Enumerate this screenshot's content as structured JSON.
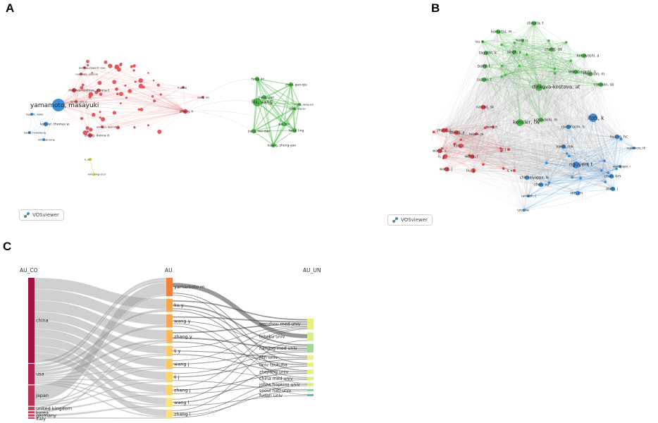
{
  "panels": {
    "a": {
      "letter": "A",
      "badge": "VOSviewer",
      "nodes": [
        {
          "label": "yamamoto, masayuki",
          "cluster": "blue",
          "size": "xl"
        },
        {
          "label": "kensler, thomas w.",
          "cluster": "blue",
          "size": "s"
        },
        {
          "label": "kwak, minkyoung",
          "cluster": "blue",
          "size": "xs"
        },
        {
          "label": "kim, jae-sung",
          "cluster": "blue",
          "size": "xs"
        },
        {
          "label": "taguchi, keiko",
          "cluster": "blue",
          "size": "xs"
        },
        {
          "label": "liu, yang",
          "cluster": "green",
          "size": "l"
        },
        {
          "label": "fang, jin",
          "cluster": "green",
          "size": "s"
        },
        {
          "label": "zhou, guo-qiu",
          "cluster": "green",
          "size": "s"
        },
        {
          "label": "jiang, yan",
          "cluster": "green",
          "size": "s"
        },
        {
          "label": "wang, jing-an",
          "cluster": "green",
          "size": "xs"
        },
        {
          "label": "zhang, jiang-jun",
          "cluster": "green",
          "size": "xs"
        },
        {
          "label": "jiang, mo-dan",
          "cluster": "green",
          "size": "s"
        },
        {
          "label": "wu, bin",
          "cluster": "green",
          "size": "s"
        },
        {
          "label": "tang, ling",
          "cluster": "green",
          "size": "s"
        },
        {
          "label": "kuang, zheng-yao",
          "cluster": "green",
          "size": "s"
        },
        {
          "label": "zhang, li",
          "cluster": "red",
          "size": "s"
        },
        {
          "label": "wang, lan",
          "cluster": "red",
          "size": "xs"
        },
        {
          "label": "li, gang",
          "cluster": "red",
          "size": "xs"
        },
        {
          "label": "dinkova-kostova, albena t.",
          "cluster": "red",
          "size": "s"
        },
        {
          "label": "hayes, john d.",
          "cluster": "red",
          "size": "xs"
        },
        {
          "label": "zhang, donna d.",
          "cluster": "red",
          "size": "s"
        },
        {
          "label": "johnson, delinda a.",
          "cluster": "red",
          "size": "xs"
        },
        {
          "label": "cuadrado, antonio",
          "cluster": "red",
          "size": "xs"
        },
        {
          "label": "jaeksya-clawent, jose",
          "cluster": "red",
          "size": "xs"
        },
        {
          "label": "kim, ying-chul",
          "cluster": "yellow",
          "size": "xs"
        },
        {
          "label": "li, jun",
          "cluster": "yellow",
          "size": "xs"
        }
      ]
    },
    "b": {
      "letter": "B",
      "badge": "VOSviewer",
      "nodes": [
        {
          "label": "itoh, k",
          "cluster": "blue",
          "size": "l"
        },
        {
          "label": "nguyen, t",
          "cluster": "blue",
          "size": "m"
        },
        {
          "label": "motohashi, h",
          "cluster": "blue",
          "size": "s"
        },
        {
          "label": "kwak, mk",
          "cluster": "blue",
          "size": "s"
        },
        {
          "label": "huang, hc",
          "cluster": "blue",
          "size": "s"
        },
        {
          "label": "cushmore, th",
          "cluster": "blue",
          "size": "xs"
        },
        {
          "label": "venugopal, r",
          "cluster": "blue",
          "size": "xs"
        },
        {
          "label": "chan, km",
          "cluster": "blue",
          "size": "s"
        },
        {
          "label": "alam, j",
          "cluster": "blue",
          "size": "s"
        },
        {
          "label": "chen, ny",
          "cluster": "blue",
          "size": "s"
        },
        {
          "label": "lee, jm",
          "cluster": "blue",
          "size": "s"
        },
        {
          "label": "ramaiah, c",
          "cluster": "blue",
          "size": "xs"
        },
        {
          "label": "ryoo, sw",
          "cluster": "blue",
          "size": "xs"
        },
        {
          "label": "chinnaiyappa, ik",
          "cluster": "blue",
          "size": "s"
        },
        {
          "label": "dinkova-kostova, at",
          "cluster": "green",
          "size": "m"
        },
        {
          "label": "kensler, tw",
          "cluster": "green",
          "size": "m"
        },
        {
          "label": "kobayashi, m",
          "cluster": "green",
          "size": "s"
        },
        {
          "label": "zhang, dd",
          "cluster": "green",
          "size": "s"
        },
        {
          "label": "kobayashi, a",
          "cluster": "green",
          "size": "s"
        },
        {
          "label": "wakabayashi, n",
          "cluster": "green",
          "size": "s"
        },
        {
          "label": "morrison, m",
          "cluster": "green",
          "size": "s"
        },
        {
          "label": "cullinan, sb",
          "cluster": "green",
          "size": "s"
        },
        {
          "label": "suzuki, t",
          "cluster": "green",
          "size": "s"
        },
        {
          "label": "baird, l",
          "cluster": "green",
          "size": "s"
        },
        {
          "label": "taguchi, k",
          "cluster": "green",
          "size": "s"
        },
        {
          "label": "komatsu, m",
          "cluster": "green",
          "size": "s"
        },
        {
          "label": "shibata, t",
          "cluster": "green",
          "size": "s"
        },
        {
          "label": "singh, a",
          "cluster": "green",
          "size": "s"
        },
        {
          "label": "wang, xj",
          "cluster": "green",
          "size": "xs"
        },
        {
          "label": "lau, a",
          "cluster": "green",
          "size": "xs"
        },
        {
          "label": "zhang, j",
          "cluster": "red",
          "size": "s"
        },
        {
          "label": "zhang, y",
          "cluster": "red",
          "size": "s"
        },
        {
          "label": "wang, y",
          "cluster": "red",
          "size": "s"
        },
        {
          "label": "li, y",
          "cluster": "red",
          "size": "s"
        },
        {
          "label": "wang, l",
          "cluster": "red",
          "size": "s"
        },
        {
          "label": "wang, j",
          "cluster": "red",
          "size": "s"
        },
        {
          "label": "liu, y",
          "cluster": "red",
          "size": "s"
        },
        {
          "label": "kim, l",
          "cluster": "red",
          "size": "s"
        },
        {
          "label": "nakaki, sk",
          "cluster": "red",
          "size": "s"
        },
        {
          "label": "kaspar, jw",
          "cluster": "red",
          "size": "xs"
        },
        {
          "label": "li, j",
          "cluster": "red",
          "size": "xs"
        },
        {
          "label": "li, x",
          "cluster": "red",
          "size": "xs"
        },
        {
          "label": "wang, h",
          "cluster": "red",
          "size": "xs"
        }
      ]
    },
    "c": {
      "letter": "C",
      "headers": {
        "left": "AU_CO",
        "mid": "AU",
        "right": "AU_UN"
      },
      "countries": [
        {
          "label": "china",
          "value": 58,
          "color": "#a3133f"
        },
        {
          "label": "usa",
          "value": 14,
          "color": "#b0224d"
        },
        {
          "label": "japan",
          "value": 14,
          "color": "#b73352"
        },
        {
          "label": "united kingdom",
          "value": 2.5,
          "color": "#c9405b"
        },
        {
          "label": "korea",
          "value": 1.5,
          "color": "#c9405b"
        },
        {
          "label": "germany",
          "value": 1.5,
          "color": "#c9405b"
        },
        {
          "label": "italy",
          "value": 1,
          "color": "#c9405b"
        }
      ],
      "authors": [
        {
          "label": "yamamoto m",
          "value": 14,
          "color": "#f0803a"
        },
        {
          "label": "liu y",
          "value": 10,
          "color": "#f7a551"
        },
        {
          "label": "wang y",
          "value": 10,
          "color": "#f7a551"
        },
        {
          "label": "zhang y",
          "value": 10,
          "color": "#f9b85c"
        },
        {
          "label": "li y",
          "value": 8,
          "color": "#fbc763"
        },
        {
          "label": "wang j",
          "value": 8,
          "color": "#fbc763"
        },
        {
          "label": "li j",
          "value": 8,
          "color": "#fcd26a"
        },
        {
          "label": "zhang j",
          "value": 8,
          "color": "#fcd26a"
        },
        {
          "label": "wang l",
          "value": 7,
          "color": "#fde07a"
        },
        {
          "label": "zhang l",
          "value": 7,
          "color": "#fde07a"
        }
      ],
      "institutions": [
        {
          "label": "wenzhou med univ",
          "value": 10,
          "color": "#eaf080"
        },
        {
          "label": "tohoku univ",
          "value": 8,
          "color": "#d8ee8e"
        },
        {
          "label": "nanjing med univ",
          "value": 8,
          "color": "#9fd89a"
        },
        {
          "label": "jilin univ",
          "value": 4,
          "color": "#ecf08a"
        },
        {
          "label": "univ tsukuba",
          "value": 4,
          "color": "#e9ef88"
        },
        {
          "label": "zhejiang univ",
          "value": 4,
          "color": "#e6ee86"
        },
        {
          "label": "china med univ",
          "value": 3,
          "color": "#e3ed85"
        },
        {
          "label": "johns hopkins univ",
          "value": 3,
          "color": "#dfec84"
        },
        {
          "label": "seoul natl univ",
          "value": 2,
          "color": "#88d0a0"
        },
        {
          "label": "fudan univ",
          "value": 2,
          "color": "#63c29e"
        }
      ],
      "links_country_author": [
        [
          0,
          1,
          8
        ],
        [
          0,
          2,
          8
        ],
        [
          0,
          3,
          8
        ],
        [
          0,
          4,
          6
        ],
        [
          0,
          5,
          6
        ],
        [
          0,
          6,
          6
        ],
        [
          0,
          7,
          6
        ],
        [
          0,
          8,
          5
        ],
        [
          0,
          9,
          5
        ],
        [
          0,
          0,
          2
        ],
        [
          1,
          0,
          2
        ],
        [
          1,
          1,
          2
        ],
        [
          1,
          2,
          2
        ],
        [
          1,
          3,
          2
        ],
        [
          1,
          4,
          1
        ],
        [
          1,
          5,
          1
        ],
        [
          1,
          6,
          1
        ],
        [
          1,
          7,
          1
        ],
        [
          1,
          8,
          1
        ],
        [
          1,
          9,
          1
        ],
        [
          2,
          0,
          10
        ],
        [
          2,
          4,
          1
        ],
        [
          2,
          5,
          1
        ],
        [
          2,
          6,
          1
        ],
        [
          3,
          0,
          1
        ],
        [
          3,
          7,
          1
        ],
        [
          4,
          3,
          1
        ],
        [
          5,
          8,
          1
        ],
        [
          6,
          9,
          1
        ]
      ],
      "links_author_inst": [
        [
          0,
          1,
          7
        ],
        [
          0,
          4,
          1
        ],
        [
          0,
          7,
          1
        ],
        [
          1,
          0,
          2
        ],
        [
          1,
          2,
          2
        ],
        [
          1,
          3,
          1
        ],
        [
          1,
          5,
          1
        ],
        [
          2,
          0,
          2
        ],
        [
          2,
          2,
          1
        ],
        [
          2,
          6,
          1
        ],
        [
          2,
          9,
          1
        ],
        [
          3,
          0,
          2
        ],
        [
          3,
          2,
          2
        ],
        [
          3,
          4,
          1
        ],
        [
          4,
          0,
          1
        ],
        [
          4,
          3,
          1
        ],
        [
          4,
          5,
          1
        ],
        [
          5,
          0,
          1
        ],
        [
          5,
          2,
          1
        ],
        [
          5,
          6,
          1
        ],
        [
          6,
          2,
          1
        ],
        [
          6,
          3,
          1
        ],
        [
          6,
          8,
          1
        ],
        [
          7,
          0,
          1
        ],
        [
          7,
          5,
          1
        ],
        [
          7,
          7,
          1
        ],
        [
          8,
          0,
          1
        ],
        [
          8,
          4,
          1
        ],
        [
          8,
          9,
          1
        ],
        [
          9,
          1,
          1
        ],
        [
          9,
          6,
          1
        ],
        [
          9,
          8,
          1
        ],
        [
          9,
          7,
          1
        ]
      ]
    }
  }
}
